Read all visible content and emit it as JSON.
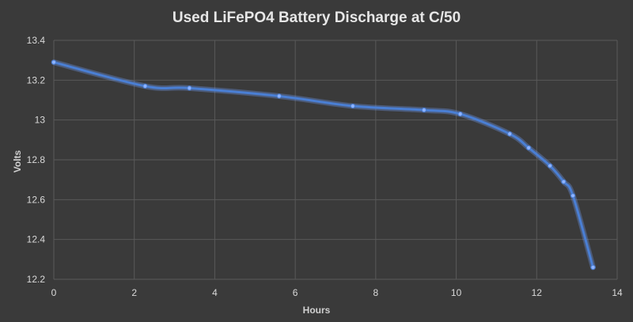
{
  "chart_data": {
    "type": "line",
    "title": "Used LiFePO4 Battery Discharge at C/50",
    "xlabel": "Hours",
    "ylabel": "Volts",
    "xlim": [
      0,
      14
    ],
    "ylim": [
      12.2,
      13.4
    ],
    "x_ticks": [
      0,
      2,
      4,
      6,
      8,
      10,
      12,
      14
    ],
    "y_ticks": [
      12.2,
      12.4,
      12.6,
      12.8,
      13,
      13.2,
      13.4
    ],
    "grid": true,
    "smooth": true,
    "series_color": "#4a7fd4",
    "background_color": "#3a3a3a",
    "series": [
      {
        "x": [
          0,
          2.27,
          3.37,
          5.6,
          7.43,
          9.2,
          10.1,
          11.33,
          11.8,
          12.33,
          12.67,
          12.9,
          13.4
        ],
        "y": [
          13.29,
          13.17,
          13.16,
          13.12,
          13.07,
          13.05,
          13.03,
          12.93,
          12.86,
          12.77,
          12.69,
          12.62,
          12.26
        ]
      }
    ]
  }
}
